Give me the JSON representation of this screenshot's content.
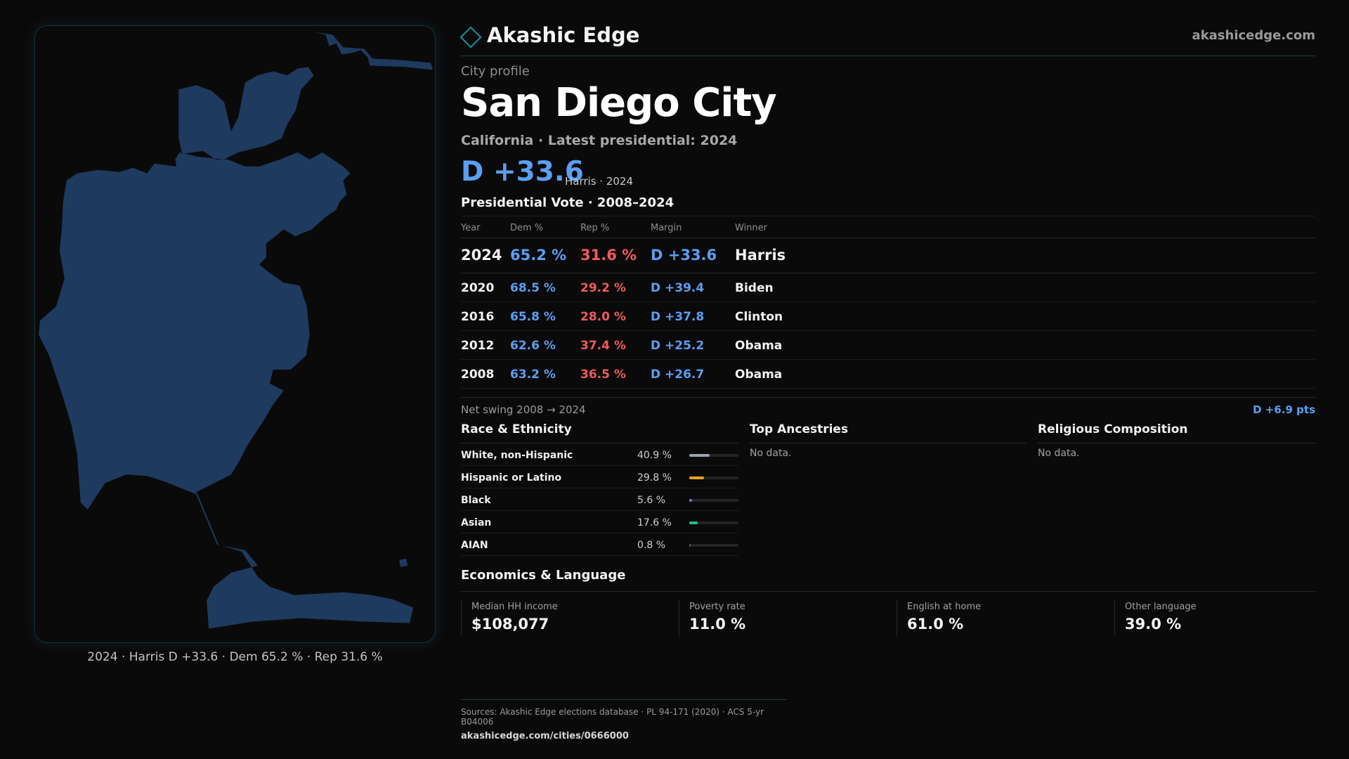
{
  "header": {
    "brand": "Akashic Edge",
    "site": "akashicedge.com"
  },
  "profile": {
    "eyebrow": "City profile",
    "city": "San Diego City",
    "subtitle": "California · Latest presidential: 2024",
    "margin": "D +33.6",
    "margin_detail": "Harris · 2024"
  },
  "vote": {
    "title": "Presidential Vote · 2008–2024",
    "headers": {
      "year": "Year",
      "dem": "Dem %",
      "rep": "Rep %",
      "margin": "Margin",
      "winner": "Winner"
    },
    "rows": [
      {
        "year": "2024",
        "dem": "65.2 %",
        "rep": "31.6 %",
        "margin": "D +33.6",
        "winner": "Harris"
      },
      {
        "year": "2020",
        "dem": "68.5 %",
        "rep": "29.2 %",
        "margin": "D +39.4",
        "winner": "Biden"
      },
      {
        "year": "2016",
        "dem": "65.8 %",
        "rep": "28.0 %",
        "margin": "D +37.8",
        "winner": "Clinton"
      },
      {
        "year": "2012",
        "dem": "62.6 %",
        "rep": "37.4 %",
        "margin": "D +25.2",
        "winner": "Obama"
      },
      {
        "year": "2008",
        "dem": "63.2 %",
        "rep": "36.5 %",
        "margin": "D +26.7",
        "winner": "Obama"
      }
    ],
    "swing_label": "Net swing 2008 → 2024",
    "swing_value": "D +6.9 pts"
  },
  "race": {
    "title": "Race & Ethnicity",
    "rows": [
      {
        "label": "White, non-Hispanic",
        "pct": "40.9 %",
        "value": 40.9,
        "color": "#9aa3b2"
      },
      {
        "label": "Hispanic or Latino",
        "pct": "29.8 %",
        "value": 29.8,
        "color": "#e8a11d"
      },
      {
        "label": "Black",
        "pct": "5.6 %",
        "value": 5.6,
        "color": "#7b6ee8"
      },
      {
        "label": "Asian",
        "pct": "17.6 %",
        "value": 17.6,
        "color": "#22c08a"
      },
      {
        "label": "AIAN",
        "pct": "0.8 %",
        "value": 0.8,
        "color": "#555555"
      }
    ]
  },
  "ancestry": {
    "title": "Top Ancestries",
    "empty": "No data."
  },
  "religion": {
    "title": "Religious Composition",
    "empty": "No data."
  },
  "economics": {
    "title": "Economics & Language",
    "cards": [
      {
        "label": "Median HH income",
        "value": "$108,077"
      },
      {
        "label": "Poverty rate",
        "value": "11.0 %"
      },
      {
        "label": "English at home",
        "value": "61.0 %"
      },
      {
        "label": "Other language",
        "value": "39.0 %"
      }
    ]
  },
  "map": {
    "caption": "2024 · Harris D +33.6 · Dem 65.2 % · Rep 31.6 %",
    "fill_color": "#1f3a5f"
  },
  "footer": {
    "sources": "Sources: Akashic Edge elections database · PL 94-171 (2020) · ACS 5-yr B04006",
    "url": "akashicedge.com/cities/0666000"
  }
}
